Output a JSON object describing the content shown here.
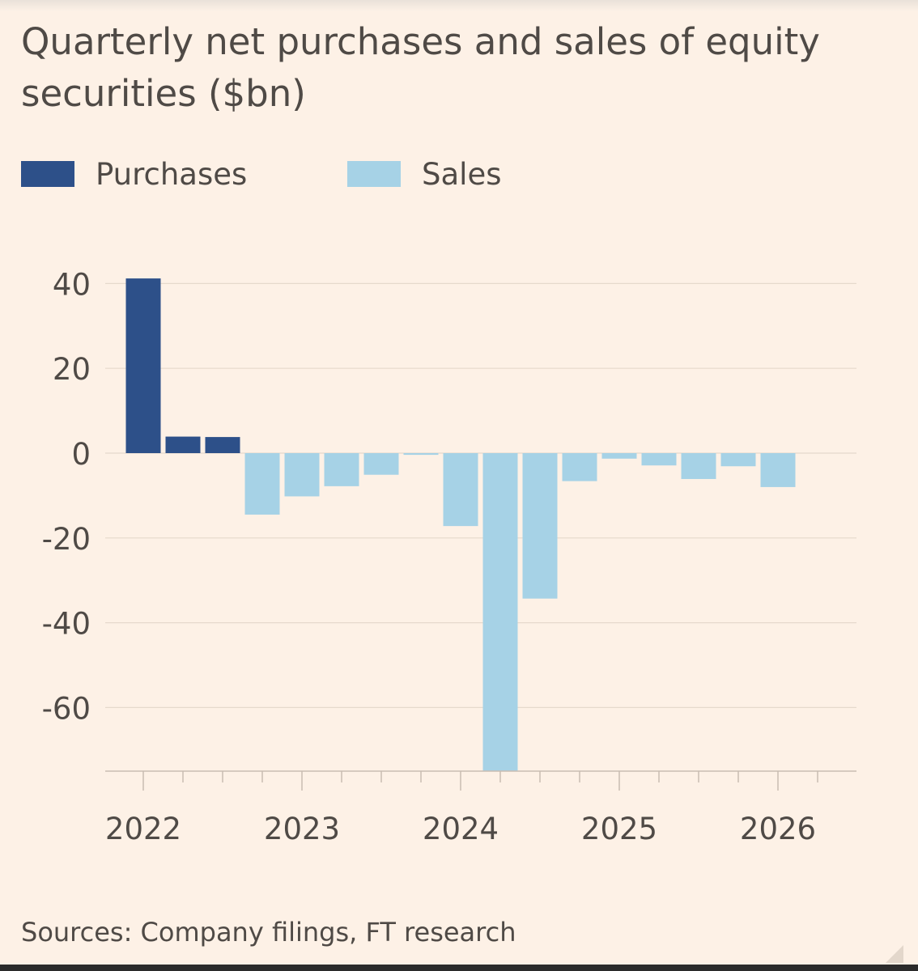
{
  "chart_data": {
    "type": "bar",
    "title": "Quarterly net purchases and sales of equity securities ($bn)",
    "source": "Sources: Company filings, FT research",
    "ylim": [
      -75,
      40
    ],
    "yticks": [
      40,
      20,
      0,
      -20,
      -40,
      -60
    ],
    "ytick_labels": [
      "40",
      "20",
      "0",
      "-20",
      "-40",
      "-60"
    ],
    "xtick_labels": [
      "2022",
      "2023",
      "2024",
      "2025",
      "2026"
    ],
    "grid": true,
    "legend_placement": "top-left",
    "categories": [
      "2022 Q1",
      "2022 Q2",
      "2022 Q3",
      "2022 Q4",
      "2023 Q1",
      "2023 Q2",
      "2023 Q3",
      "2023 Q4",
      "2024 Q1",
      "2024 Q2",
      "2024 Q3",
      "2024 Q4",
      "2025 Q1",
      "2025 Q2",
      "2025 Q3",
      "2025 Q4",
      "2026 Q1"
    ],
    "series": [
      {
        "name": "Purchases",
        "color": "#2d5089",
        "values": [
          41.2,
          3.9,
          3.8,
          null,
          null,
          null,
          null,
          null,
          null,
          null,
          null,
          null,
          null,
          null,
          null,
          null,
          null
        ]
      },
      {
        "name": "Sales",
        "color": "#a6d2e6",
        "values": [
          null,
          null,
          null,
          -14.5,
          -10.2,
          -7.8,
          -5.1,
          -0.4,
          -17.2,
          -75.0,
          -34.3,
          -6.6,
          -1.3,
          -2.9,
          -6.1,
          -3.1,
          -8.0
        ]
      }
    ]
  }
}
